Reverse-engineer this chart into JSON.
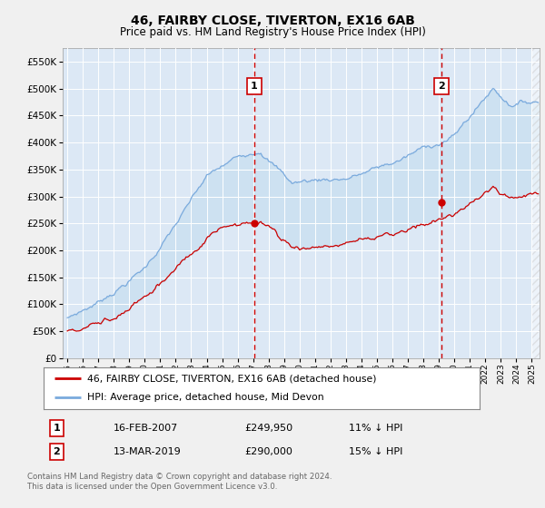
{
  "title": "46, FAIRBY CLOSE, TIVERTON, EX16 6AB",
  "subtitle": "Price paid vs. HM Land Registry's House Price Index (HPI)",
  "legend_line1": "46, FAIRBY CLOSE, TIVERTON, EX16 6AB (detached house)",
  "legend_line2": "HPI: Average price, detached house, Mid Devon",
  "annotation1_label": "1",
  "annotation1_date": "16-FEB-2007",
  "annotation1_price": 249950,
  "annotation1_price_str": "£249,950",
  "annotation1_pct": "11% ↓ HPI",
  "annotation1_year": 2007.08,
  "annotation2_label": "2",
  "annotation2_date": "13-MAR-2019",
  "annotation2_price": 290000,
  "annotation2_price_str": "£290,000",
  "annotation2_pct": "15% ↓ HPI",
  "annotation2_year": 2019.17,
  "footer1": "Contains HM Land Registry data © Crown copyright and database right 2024.",
  "footer2": "This data is licensed under the Open Government Licence v3.0.",
  "hpi_color": "#7aaadd",
  "price_color": "#cc0000",
  "background_color": "#f0f0f0",
  "plot_bg": "#dce8f5",
  "fill_color": "#c8dff0",
  "vline_color": "#cc0000",
  "ylim": [
    0,
    575000
  ],
  "yticks": [
    0,
    50000,
    100000,
    150000,
    200000,
    250000,
    300000,
    350000,
    400000,
    450000,
    500000,
    550000
  ],
  "xlim_start": 1994.7,
  "xlim_end": 2025.5
}
